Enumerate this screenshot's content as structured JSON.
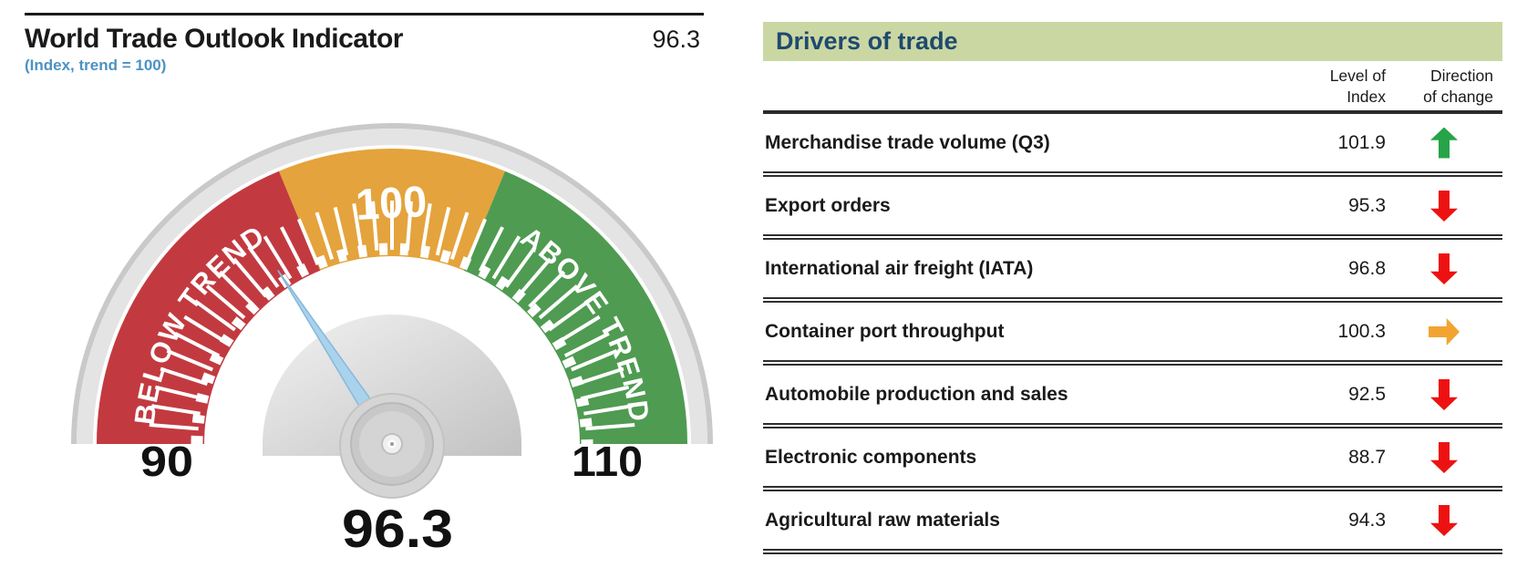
{
  "chart_data": [
    {
      "type": "gauge",
      "title": "World Trade Outlook Indicator",
      "title_value": "96.3",
      "subtitle": "(Index, trend = 100)",
      "value": 96.3,
      "value_label": "96.3",
      "min": 90,
      "max": 110,
      "tick_step": 0.5,
      "axis_labels": {
        "min": "90",
        "max": "110",
        "center": "100"
      },
      "zones": [
        {
          "label": "BELOW TREND",
          "from": 90,
          "to": 97.5,
          "color": "#c23a40"
        },
        {
          "label": "100",
          "from": 97.5,
          "to": 102.5,
          "color": "#e4a33c"
        },
        {
          "label": "ABOVE TREND",
          "from": 102.5,
          "to": 110,
          "color": "#4f9b51"
        }
      ],
      "needle_color": "#a9d3ec",
      "rim_color": "#e3e3e3"
    },
    {
      "type": "table",
      "title": "Drivers of trade",
      "column_headers": {
        "level_line1": "Level of",
        "level_line2": "Index",
        "dir_line1": "Direction",
        "dir_line2": "of change"
      },
      "rows": [
        {
          "label": "Merchandise trade volume (Q3)",
          "value": "101.9",
          "direction": "up"
        },
        {
          "label": "Export orders",
          "value": "95.3",
          "direction": "down"
        },
        {
          "label": "International air freight (IATA)",
          "value": "96.8",
          "direction": "down"
        },
        {
          "label": "Container port throughput",
          "value": "100.3",
          "direction": "right"
        },
        {
          "label": "Automobile production and sales",
          "value": "92.5",
          "direction": "down"
        },
        {
          "label": "Electronic components",
          "value": "88.7",
          "direction": "down"
        },
        {
          "label": "Agricultural raw materials",
          "value": "94.3",
          "direction": "down"
        }
      ],
      "arrow_colors": {
        "up": "#27a447",
        "down": "#ee1111",
        "right": "#f2a431"
      },
      "header_bg": "#cad7a3",
      "header_text_color": "#1f4a6e"
    }
  ]
}
